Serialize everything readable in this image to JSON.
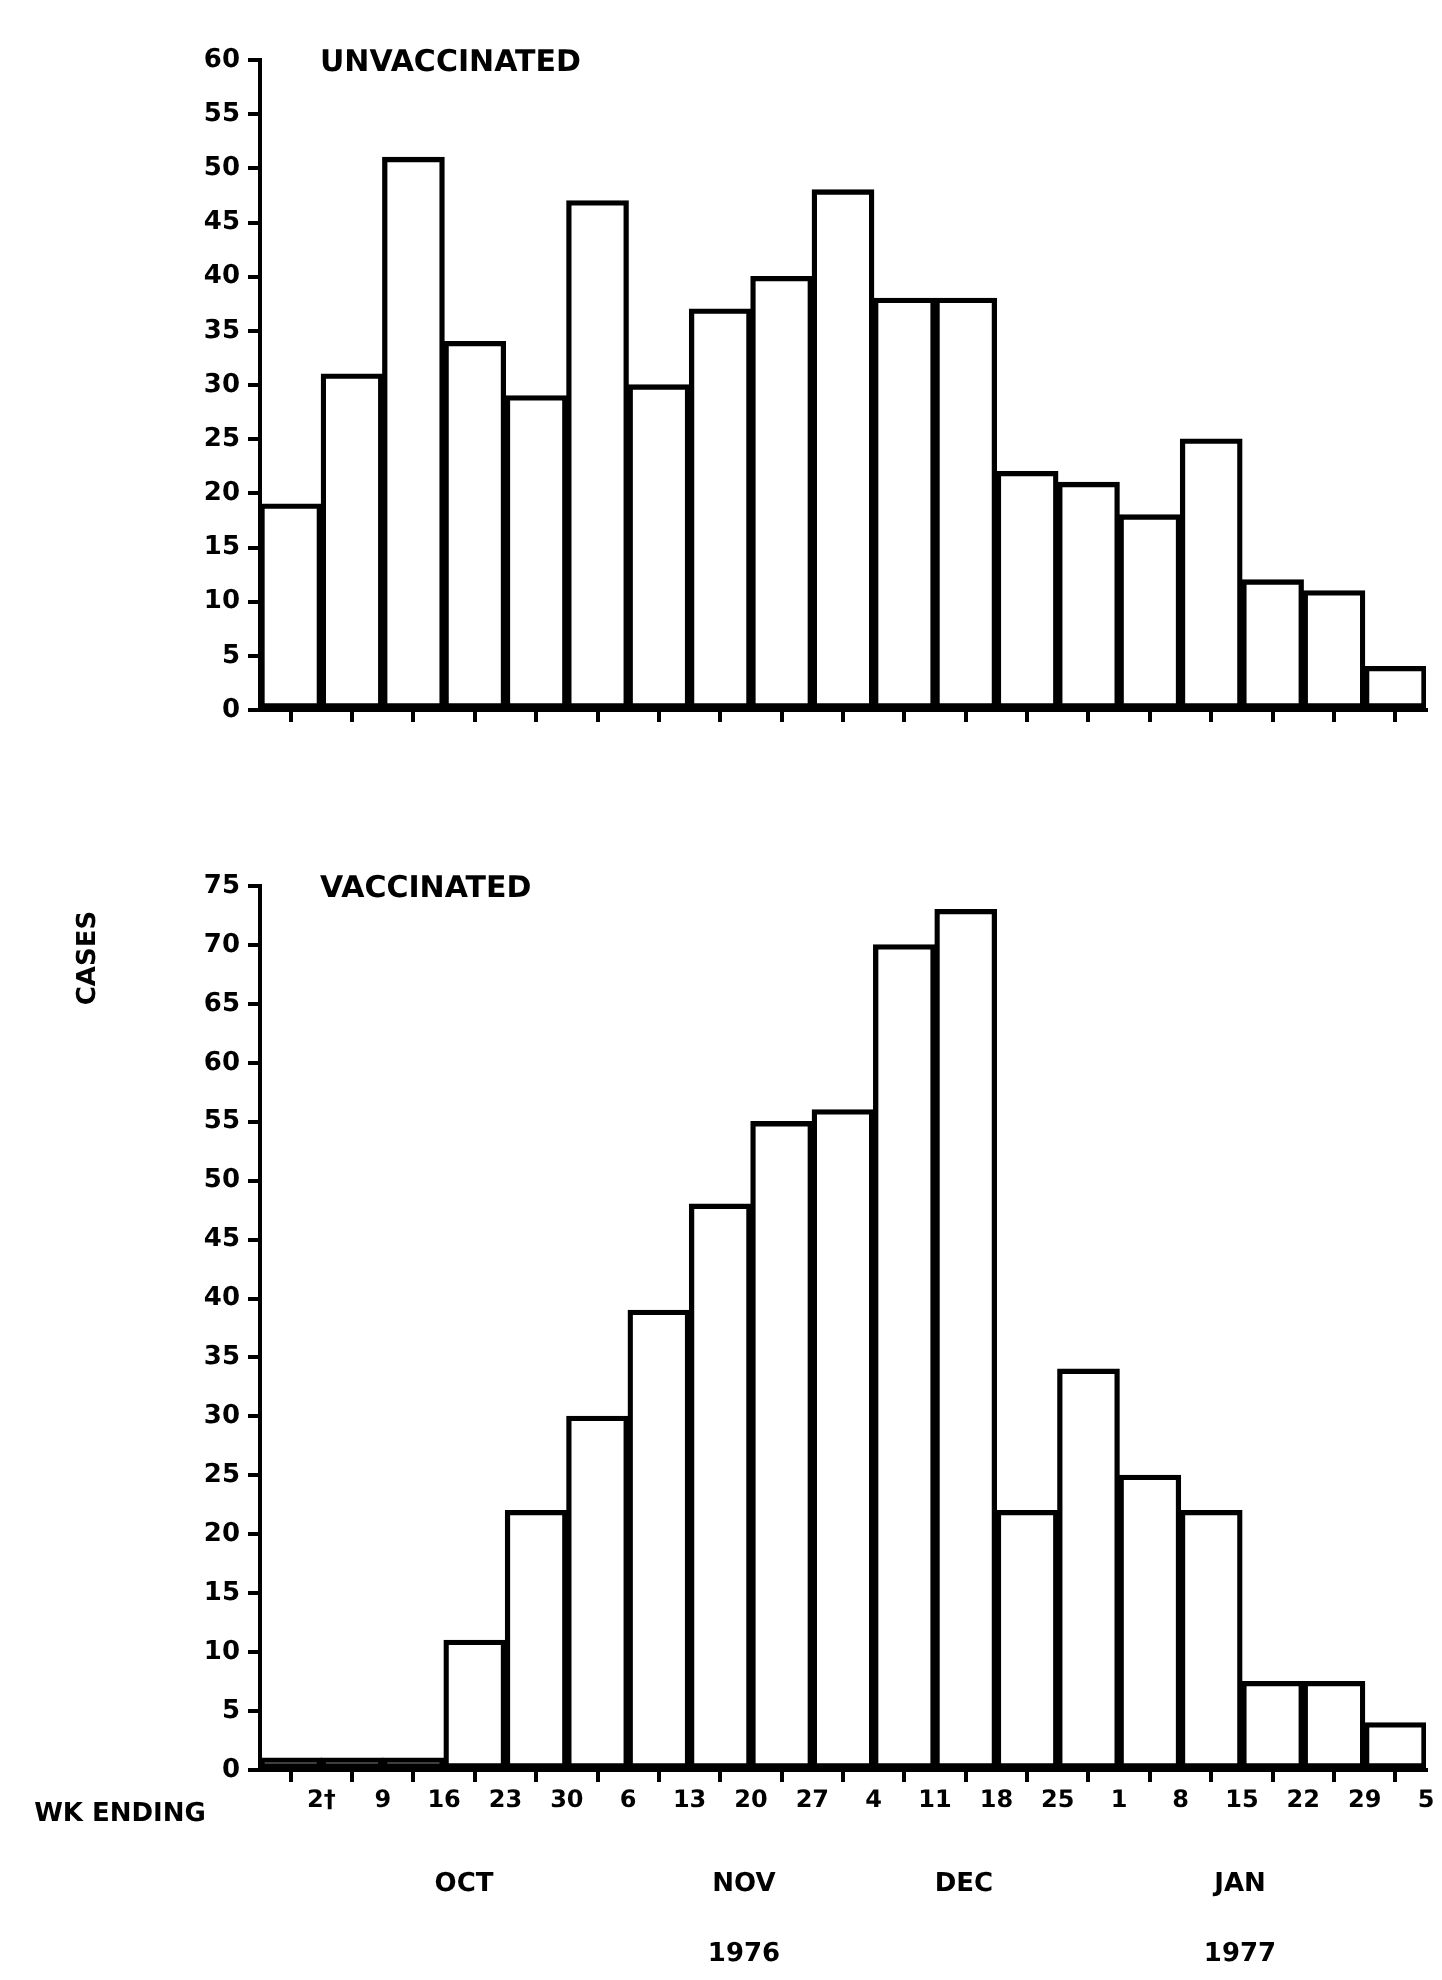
{
  "chart_data": [
    {
      "type": "bar",
      "title": "UNVACCINATED",
      "x": [
        "1976-09-28T12:00",
        "1976-10-05T12:00",
        "1976-10-12T12:00",
        "1976-10-19T12:00",
        "1976-10-26T12:00",
        "1976-11-02T12:00",
        "1976-11-09T12:00",
        "1976-11-16T12:00",
        "1976-11-23T12:00",
        "1976-11-30T12:00",
        "1976-12-07T12:00",
        "1976-12-14T12:00",
        "1976-12-21T12:00",
        "1976-12-28T12:00",
        "1977-01-04T12:00",
        "1977-01-11T12:00",
        "1977-01-18T12:00",
        "1977-01-25T12:00",
        "1977-02-01T12:00"
      ],
      "values": [
        19,
        31,
        51,
        34,
        29,
        47,
        30,
        37,
        40,
        48,
        38,
        38,
        22,
        21,
        18,
        25,
        12,
        11,
        4
      ],
      "color": "#000000",
      "xlim": [
        "1976-09-25",
        "1977-02-05"
      ],
      "xticks": [
        {
          "value": "1976-10-02",
          "label": null
        },
        {
          "value": "1976-10-09",
          "label": null
        },
        {
          "value": "1976-10-16",
          "label": null
        },
        {
          "value": "1976-10-23",
          "label": null
        },
        {
          "value": "1976-10-30",
          "label": null
        },
        {
          "value": "1976-11-06",
          "label": null
        },
        {
          "value": "1976-11-13",
          "label": null
        },
        {
          "value": "1976-11-20",
          "label": null
        },
        {
          "value": "1976-11-27",
          "label": null
        },
        {
          "value": "1976-12-04",
          "label": null
        },
        {
          "value": "1976-12-11",
          "label": null
        },
        {
          "value": "1976-12-18",
          "label": null
        },
        {
          "value": "1976-12-25",
          "label": null
        },
        {
          "value": "1977-01-01",
          "label": null
        },
        {
          "value": "1977-01-08",
          "label": null
        },
        {
          "value": "1977-01-15",
          "label": null
        },
        {
          "value": "1977-01-22",
          "label": null
        },
        {
          "value": "1977-01-29",
          "label": null
        },
        {
          "value": "1977-02-05",
          "label": null
        }
      ],
      "ylim": [
        0,
        60
      ],
      "yticks": [
        0,
        5,
        10,
        15,
        20,
        25,
        30,
        35,
        40,
        45,
        50,
        55,
        60
      ],
      "tick_labels": "y",
      "grid": false,
      "legend": false
    },
    {
      "type": "bar",
      "title": "VACCINATED",
      "ylabel": "CASES",
      "x": [
        "1976-09-28T12:00",
        "1976-10-05T12:00",
        "1976-10-12T12:00",
        "1976-10-19T12:00",
        "1976-10-26T12:00",
        "1976-11-02T12:00",
        "1976-11-09T12:00",
        "1976-11-16T12:00",
        "1976-11-23T12:00",
        "1976-11-30T12:00",
        "1976-12-07T12:00",
        "1976-12-14T12:00",
        "1976-12-21T12:00",
        "1976-12-28T12:00",
        "1977-01-04T12:00",
        "1977-01-11T12:00",
        "1977-01-18T12:00",
        "1977-01-25T12:00",
        "1977-02-01T12:00"
      ],
      "values": [
        1,
        1,
        1,
        11,
        22,
        30,
        39,
        48,
        55,
        56,
        70,
        73,
        22,
        34,
        25,
        22,
        7.5,
        7.5,
        4
      ],
      "color": "#000000",
      "xlim": [
        "1976-09-25",
        "1977-02-05"
      ],
      "xticks": [
        {
          "value": "1976-10-02",
          "label": "2†"
        },
        {
          "value": "1976-10-09",
          "label": "9"
        },
        {
          "value": "1976-10-16",
          "label": "16"
        },
        {
          "value": "1976-10-23",
          "label": "23"
        },
        {
          "value": "1976-10-30",
          "label": "30"
        },
        {
          "value": "1976-11-06",
          "label": "6"
        },
        {
          "value": "1976-11-13",
          "label": "13"
        },
        {
          "value": "1976-11-20",
          "label": "20"
        },
        {
          "value": "1976-11-27",
          "label": "27"
        },
        {
          "value": "1976-12-04",
          "label": "4"
        },
        {
          "value": "1976-12-11",
          "label": "11"
        },
        {
          "value": "1976-12-18",
          "label": "18"
        },
        {
          "value": "1976-12-25",
          "label": "25"
        },
        {
          "value": "1977-01-01",
          "label": "1"
        },
        {
          "value": "1977-01-08",
          "label": "8"
        },
        {
          "value": "1977-01-15",
          "label": "15"
        },
        {
          "value": "1977-01-22",
          "label": "22"
        },
        {
          "value": "1977-01-29",
          "label": "29"
        },
        {
          "value": "1977-02-05",
          "label": "5"
        }
      ],
      "ylim": [
        0,
        75
      ],
      "yticks": [
        0,
        5,
        10,
        15,
        20,
        25,
        30,
        35,
        40,
        45,
        50,
        55,
        60,
        65,
        70,
        75
      ],
      "grid": false,
      "legend": false,
      "annotations": [
        "WK ENDING",
        "OCT",
        "NOV",
        "DEC",
        "JAN",
        "1976",
        "1977"
      ]
    }
  ]
}
